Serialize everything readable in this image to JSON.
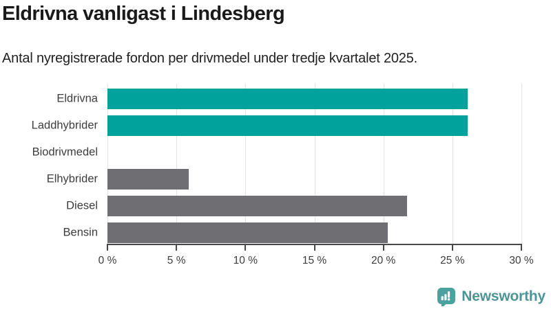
{
  "header": {
    "title": "Eldrivna vanligast i Lindesberg",
    "subtitle": "Antal nyregistrerade fordon per drivmedel under tredje kvartalet 2025."
  },
  "chart_data": {
    "type": "bar",
    "orientation": "horizontal",
    "title": "Eldrivna vanligast i Lindesberg",
    "subtitle": "Antal nyregistrerade fordon per drivmedel under tredje kvartalet 2025.",
    "categories": [
      "Eldrivna",
      "Laddhybrider",
      "Biodrivmedel",
      "Elhybrider",
      "Diesel",
      "Bensin"
    ],
    "values": [
      26.1,
      26.1,
      0,
      5.9,
      21.7,
      20.3
    ],
    "unit": "%",
    "bar_colors": [
      "#00a29b",
      "#00a29b",
      "#6e6e73",
      "#6e6e73",
      "#6e6e73",
      "#6e6e73"
    ],
    "xlabel": "",
    "ylabel": "",
    "xlim": [
      0,
      30
    ],
    "xticks": [
      0,
      5,
      10,
      15,
      20,
      25,
      30
    ],
    "xtick_labels": [
      "0 %",
      "5 %",
      "10 %",
      "15 %",
      "20 %",
      "25 %",
      "30 %"
    ],
    "grid": true,
    "legend": false
  },
  "colors": {
    "accent_teal": "#00a29b",
    "neutral_gray": "#6e6e73",
    "gridline": "#e3e3e3",
    "axis": "#47474b",
    "text_dark": "#1a1a1a",
    "label_gray": "#3d3d3d"
  },
  "footer": {
    "brand": "Newsworthy",
    "brand_color": "#4b9598",
    "icon": "bar-chart-speech-bubble-icon",
    "icon_color": "#4ba19d"
  }
}
